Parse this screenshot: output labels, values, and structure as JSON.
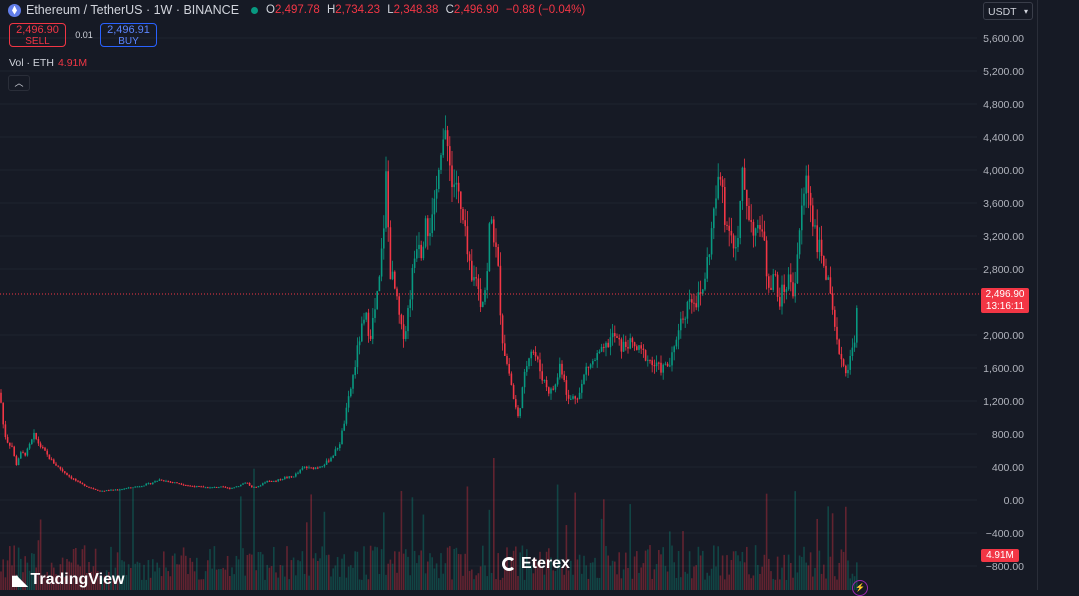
{
  "header": {
    "symbol": "Ethereum / TetherUS · 1W · BINANCE",
    "o_key": "O",
    "open": "2,497.78",
    "h_key": "H",
    "high": "2,734.23",
    "l_key": "L",
    "low": "2,348.38",
    "c_key": "C",
    "close": "2,496.90",
    "change": "−0.88 (−0.04%)"
  },
  "trade": {
    "sell_price": "2,496.90",
    "sell_label": "SELL",
    "spread": "0.01",
    "buy_price": "2,496.91",
    "buy_label": "BUY"
  },
  "volume_label": {
    "name": "Vol · ETH",
    "value": "4.91M"
  },
  "currency": "USDT",
  "price_tag": {
    "price": "2,496.90",
    "countdown": "13:16:11"
  },
  "volume_tag": "4.91M",
  "branding": {
    "tradingview": "TradingView",
    "watermark": "Eterex"
  },
  "colors": {
    "up": "#089981",
    "down": "#f23645",
    "background": "#161a25",
    "grid": "#1f2430"
  },
  "chart_data": {
    "type": "candlestick",
    "interval": "1W",
    "y_ticks": [
      "5,600.00",
      "5,200.00",
      "4,800.00",
      "4,400.00",
      "4,000.00",
      "3,600.00",
      "3,200.00",
      "2,800.00",
      "2,000.00",
      "1,600.00",
      "1,200.00",
      "800.00",
      "400.00",
      "0.00",
      "−400.00",
      "−800.00"
    ],
    "y_tick_values": [
      5600,
      5200,
      4800,
      4400,
      4000,
      3600,
      3200,
      2800,
      2000,
      1600,
      1200,
      800,
      400,
      0,
      -400,
      -800
    ],
    "ylim": [
      -900,
      6000
    ],
    "last_price": 2496.9,
    "close_path": [
      [
        0,
        1300
      ],
      [
        4,
        820
      ],
      [
        8,
        700
      ],
      [
        12,
        650
      ],
      [
        16,
        420
      ],
      [
        20,
        560
      ],
      [
        26,
        560
      ],
      [
        34,
        780
      ],
      [
        40,
        660
      ],
      [
        46,
        560
      ],
      [
        52,
        470
      ],
      [
        60,
        380
      ],
      [
        70,
        280
      ],
      [
        80,
        200
      ],
      [
        90,
        150
      ],
      [
        100,
        110
      ],
      [
        110,
        120
      ],
      [
        120,
        130
      ],
      [
        130,
        150
      ],
      [
        140,
        170
      ],
      [
        150,
        200
      ],
      [
        160,
        250
      ],
      [
        170,
        220
      ],
      [
        180,
        200
      ],
      [
        190,
        170
      ],
      [
        200,
        160
      ],
      [
        210,
        150
      ],
      [
        220,
        160
      ],
      [
        230,
        140
      ],
      [
        240,
        180
      ],
      [
        246,
        220
      ],
      [
        252,
        150
      ],
      [
        258,
        160
      ],
      [
        266,
        230
      ],
      [
        276,
        230
      ],
      [
        284,
        270
      ],
      [
        292,
        280
      ],
      [
        298,
        330
      ],
      [
        304,
        400
      ],
      [
        310,
        380
      ],
      [
        318,
        400
      ],
      [
        326,
        450
      ],
      [
        334,
        560
      ],
      [
        340,
        700
      ],
      [
        346,
        1050
      ],
      [
        350,
        1300
      ],
      [
        356,
        1700
      ],
      [
        360,
        2000
      ],
      [
        366,
        2200
      ],
      [
        370,
        2000
      ],
      [
        376,
        2350
      ],
      [
        380,
        2700
      ],
      [
        384,
        3400
      ],
      [
        386,
        3900
      ],
      [
        390,
        2800
      ],
      [
        394,
        2600
      ],
      [
        398,
        2300
      ],
      [
        402,
        2000
      ],
      [
        406,
        2100
      ],
      [
        410,
        2500
      ],
      [
        414,
        2900
      ],
      [
        418,
        3250
      ],
      [
        422,
        3000
      ],
      [
        426,
        3600
      ],
      [
        428,
        3300
      ],
      [
        432,
        3350
      ],
      [
        436,
        3600
      ],
      [
        438,
        4100
      ],
      [
        442,
        4400
      ],
      [
        446,
        4300
      ],
      [
        450,
        4200
      ],
      [
        452,
        3800
      ],
      [
        456,
        3900
      ],
      [
        460,
        3500
      ],
      [
        464,
        3300
      ],
      [
        468,
        2900
      ],
      [
        472,
        2600
      ],
      [
        476,
        2750
      ],
      [
        480,
        2400
      ],
      [
        484,
        2500
      ],
      [
        488,
        2800
      ],
      [
        490,
        3500
      ],
      [
        494,
        3200
      ],
      [
        498,
        2800
      ],
      [
        502,
        2000
      ],
      [
        506,
        1700
      ],
      [
        510,
        1500
      ],
      [
        514,
        1200
      ],
      [
        518,
        1000
      ],
      [
        522,
        1300
      ],
      [
        526,
        1600
      ],
      [
        530,
        1850
      ],
      [
        534,
        1800
      ],
      [
        538,
        1650
      ],
      [
        542,
        1500
      ],
      [
        546,
        1400
      ],
      [
        550,
        1300
      ],
      [
        556,
        1400
      ],
      [
        560,
        1650
      ],
      [
        564,
        1500
      ],
      [
        568,
        1200
      ],
      [
        574,
        1250
      ],
      [
        580,
        1300
      ],
      [
        586,
        1600
      ],
      [
        592,
        1650
      ],
      [
        598,
        1750
      ],
      [
        604,
        1800
      ],
      [
        610,
        1950
      ],
      [
        614,
        2000
      ],
      [
        618,
        1900
      ],
      [
        622,
        1850
      ],
      [
        628,
        1900
      ],
      [
        634,
        1850
      ],
      [
        640,
        1800
      ],
      [
        646,
        1750
      ],
      [
        652,
        1650
      ],
      [
        658,
        1600
      ],
      [
        664,
        1600
      ],
      [
        670,
        1650
      ],
      [
        674,
        1800
      ],
      [
        678,
        2100
      ],
      [
        682,
        2200
      ],
      [
        686,
        2300
      ],
      [
        690,
        2500
      ],
      [
        696,
        2400
      ],
      [
        702,
        2500
      ],
      [
        706,
        2800
      ],
      [
        710,
        3100
      ],
      [
        714,
        3500
      ],
      [
        718,
        3800
      ],
      [
        722,
        3900
      ],
      [
        726,
        3300
      ],
      [
        730,
        3400
      ],
      [
        734,
        3000
      ],
      [
        738,
        3100
      ],
      [
        742,
        3900
      ],
      [
        746,
        3700
      ],
      [
        750,
        3400
      ],
      [
        754,
        3300
      ],
      [
        758,
        3200
      ],
      [
        762,
        3400
      ],
      [
        766,
        2800
      ],
      [
        770,
        2600
      ],
      [
        774,
        2800
      ],
      [
        778,
        2400
      ],
      [
        782,
        2500
      ],
      [
        786,
        2600
      ],
      [
        790,
        2700
      ],
      [
        794,
        2500
      ],
      [
        798,
        3100
      ],
      [
        802,
        3500
      ],
      [
        806,
        3900
      ],
      [
        808,
        3800
      ],
      [
        812,
        3500
      ],
      [
        816,
        3200
      ],
      [
        820,
        3000
      ],
      [
        824,
        2900
      ],
      [
        828,
        2600
      ],
      [
        832,
        2300
      ],
      [
        836,
        1900
      ],
      [
        840,
        1800
      ],
      [
        844,
        1600
      ],
      [
        848,
        1600
      ],
      [
        852,
        1800
      ],
      [
        856,
        2100
      ],
      [
        858,
        2497
      ]
    ]
  }
}
